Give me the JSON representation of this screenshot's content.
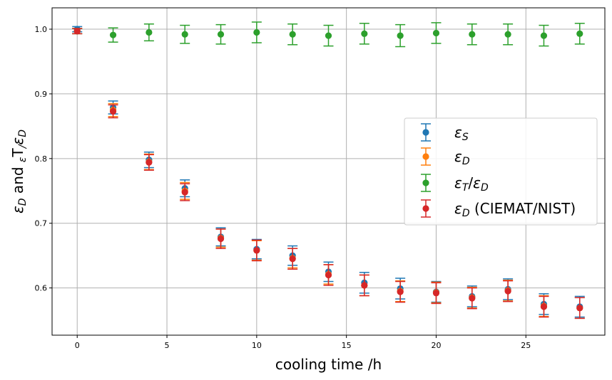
{
  "chart_data": {
    "type": "scatter",
    "title": "",
    "xlabel": "cooling time /h",
    "ylabel_parts": [
      "ε",
      "D",
      " and ",
      "ε",
      "T",
      "/",
      "ε",
      "D"
    ],
    "xlim": [
      -1.4,
      29.4
    ],
    "ylim": [
      0.527,
      1.033
    ],
    "xticks": [
      0,
      5,
      10,
      15,
      20,
      25
    ],
    "yticks": [
      0.6,
      0.7,
      0.8,
      0.9,
      1.0
    ],
    "xtick_labels": [
      "0",
      "5",
      "10",
      "15",
      "20",
      "25"
    ],
    "ytick_labels": [
      "0.6",
      "0.7",
      "0.8",
      "0.9",
      "1.0"
    ],
    "grid": true,
    "legend_position": "center-right",
    "x": [
      0,
      2,
      4,
      6,
      8,
      10,
      12,
      14,
      16,
      18,
      20,
      22,
      24,
      26,
      28
    ],
    "series": [
      {
        "name_parts": [
          "ε",
          "S",
          ""
        ],
        "color": "#1f77b4",
        "values": [
          1.0,
          0.879,
          0.798,
          0.754,
          0.679,
          0.66,
          0.65,
          0.625,
          0.608,
          0.599,
          0.594,
          0.587,
          0.598,
          0.575,
          0.571
        ],
        "errors": [
          0.004,
          0.01,
          0.012,
          0.013,
          0.014,
          0.015,
          0.015,
          0.015,
          0.016,
          0.016,
          0.016,
          0.016,
          0.016,
          0.016,
          0.016
        ]
      },
      {
        "name_parts": [
          "ε",
          "D",
          ""
        ],
        "color": "#ff7f0e",
        "values": [
          0.997,
          0.875,
          0.795,
          0.75,
          0.677,
          0.658,
          0.646,
          0.621,
          0.604,
          0.595,
          0.593,
          0.585,
          0.596,
          0.572,
          0.569
        ],
        "errors": [
          0.004,
          0.01,
          0.012,
          0.013,
          0.014,
          0.015,
          0.015,
          0.015,
          0.016,
          0.016,
          0.016,
          0.016,
          0.016,
          0.016,
          0.016
        ]
      },
      {
        "name_parts": [
          "ε",
          "T",
          "/ε",
          "D",
          ""
        ],
        "color": "#2ca02c",
        "values": [
          0.997,
          0.991,
          0.995,
          0.992,
          0.992,
          0.995,
          0.992,
          0.99,
          0.993,
          0.99,
          0.994,
          0.992,
          0.992,
          0.99,
          0.993
        ],
        "errors": [
          0.004,
          0.011,
          0.013,
          0.014,
          0.015,
          0.016,
          0.016,
          0.016,
          0.016,
          0.017,
          0.016,
          0.016,
          0.016,
          0.016,
          0.016
        ]
      },
      {
        "name_parts": [
          "ε",
          "D",
          " (CIEMAT/NIST)"
        ],
        "color": "#d62728",
        "values": [
          0.997,
          0.873,
          0.794,
          0.748,
          0.676,
          0.658,
          0.645,
          0.62,
          0.604,
          0.594,
          0.592,
          0.584,
          0.595,
          0.571,
          0.569
        ],
        "errors": [
          0.004,
          0.01,
          0.012,
          0.013,
          0.015,
          0.016,
          0.016,
          0.016,
          0.016,
          0.016,
          0.016,
          0.016,
          0.016,
          0.016,
          0.016
        ]
      }
    ]
  }
}
